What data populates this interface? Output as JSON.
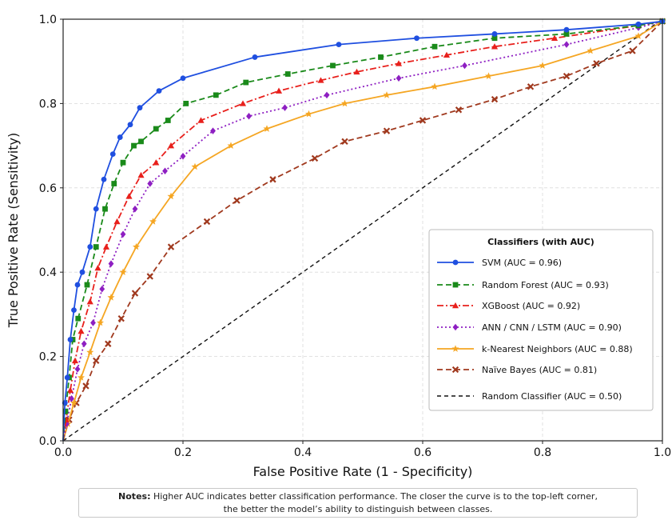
{
  "chart_data": {
    "type": "line",
    "title": "",
    "xlabel": "False Positive Rate (1 - Specificity)",
    "ylabel": "True Positive Rate (Sensitivity)",
    "xlim": [
      0,
      1
    ],
    "ylim": [
      0,
      1
    ],
    "x_ticks": [
      "0.0",
      "0.2",
      "0.4",
      "0.6",
      "0.8",
      "1.0"
    ],
    "y_ticks": [
      "0.0",
      "0.2",
      "0.4",
      "0.6",
      "0.8",
      "1.0"
    ],
    "grid": true,
    "legend_title": "Classifiers (with AUC)",
    "legend_position": "lower-right",
    "series": [
      {
        "name": "SVM (AUC = 0.96)",
        "color": "#1f4fe0",
        "line_style": "solid",
        "marker": "circle",
        "x": [
          0,
          0.003,
          0.007,
          0.012,
          0.018,
          0.024,
          0.032,
          0.045,
          0.055,
          0.068,
          0.083,
          0.095,
          0.112,
          0.128,
          0.16,
          0.2,
          0.32,
          0.46,
          0.59,
          0.72,
          0.84,
          0.96,
          1.0
        ],
        "y": [
          0,
          0.09,
          0.15,
          0.24,
          0.31,
          0.37,
          0.4,
          0.46,
          0.55,
          0.62,
          0.68,
          0.72,
          0.75,
          0.79,
          0.83,
          0.86,
          0.91,
          0.94,
          0.955,
          0.965,
          0.975,
          0.988,
          0.995
        ]
      },
      {
        "name": "Random Forest (AUC = 0.93)",
        "color": "#1a8a1a",
        "line_style": "dashed",
        "marker": "square",
        "x": [
          0,
          0.004,
          0.01,
          0.016,
          0.025,
          0.04,
          0.055,
          0.07,
          0.085,
          0.1,
          0.118,
          0.13,
          0.155,
          0.175,
          0.205,
          0.255,
          0.305,
          0.375,
          0.45,
          0.53,
          0.62,
          0.72,
          0.84,
          0.96,
          1.0
        ],
        "y": [
          0,
          0.07,
          0.15,
          0.24,
          0.29,
          0.37,
          0.46,
          0.55,
          0.61,
          0.66,
          0.7,
          0.71,
          0.74,
          0.76,
          0.8,
          0.82,
          0.85,
          0.87,
          0.89,
          0.91,
          0.935,
          0.955,
          0.965,
          0.985,
          0.995
        ]
      },
      {
        "name": "XGBoost (AUC = 0.92)",
        "color": "#e8201c",
        "line_style": "dashdot",
        "marker": "triangle",
        "x": [
          0,
          0.005,
          0.012,
          0.02,
          0.03,
          0.045,
          0.058,
          0.072,
          0.09,
          0.11,
          0.13,
          0.155,
          0.18,
          0.23,
          0.3,
          0.36,
          0.43,
          0.49,
          0.56,
          0.64,
          0.72,
          0.82,
          0.96,
          1.0
        ],
        "y": [
          0,
          0.05,
          0.12,
          0.19,
          0.26,
          0.33,
          0.41,
          0.46,
          0.52,
          0.58,
          0.63,
          0.66,
          0.7,
          0.76,
          0.8,
          0.83,
          0.855,
          0.875,
          0.895,
          0.915,
          0.935,
          0.955,
          0.985,
          0.995
        ]
      },
      {
        "name": "ANN / CNN / LSTM (AUC = 0.90)",
        "color": "#8e1fc2",
        "line_style": "dotted",
        "marker": "diamond",
        "x": [
          0,
          0.006,
          0.014,
          0.024,
          0.035,
          0.05,
          0.065,
          0.08,
          0.1,
          0.12,
          0.145,
          0.17,
          0.2,
          0.25,
          0.31,
          0.37,
          0.44,
          0.56,
          0.67,
          0.84,
          0.96,
          1.0
        ],
        "y": [
          0,
          0.04,
          0.1,
          0.17,
          0.23,
          0.28,
          0.36,
          0.42,
          0.49,
          0.55,
          0.61,
          0.64,
          0.675,
          0.735,
          0.77,
          0.79,
          0.82,
          0.86,
          0.89,
          0.94,
          0.98,
          0.995
        ]
      },
      {
        "name": "k-Nearest Neighbors (AUC = 0.88)",
        "color": "#f5a623",
        "line_style": "solid",
        "marker": "star",
        "x": [
          0,
          0.008,
          0.018,
          0.03,
          0.045,
          0.062,
          0.08,
          0.1,
          0.122,
          0.15,
          0.18,
          0.22,
          0.28,
          0.34,
          0.41,
          0.47,
          0.54,
          0.62,
          0.71,
          0.8,
          0.88,
          0.96,
          1.0
        ],
        "y": [
          0,
          0.04,
          0.09,
          0.15,
          0.21,
          0.28,
          0.34,
          0.4,
          0.46,
          0.52,
          0.58,
          0.65,
          0.7,
          0.74,
          0.775,
          0.8,
          0.82,
          0.84,
          0.865,
          0.89,
          0.925,
          0.96,
          0.995
        ]
      },
      {
        "name": "Naïve Bayes (AUC = 0.81)",
        "color": "#a0391e",
        "line_style": "dashed",
        "marker": "x",
        "x": [
          0,
          0.01,
          0.022,
          0.038,
          0.055,
          0.075,
          0.097,
          0.12,
          0.145,
          0.18,
          0.24,
          0.29,
          0.35,
          0.42,
          0.47,
          0.54,
          0.6,
          0.66,
          0.72,
          0.78,
          0.84,
          0.89,
          0.95,
          1.0
        ],
        "y": [
          0,
          0.05,
          0.09,
          0.13,
          0.19,
          0.23,
          0.29,
          0.35,
          0.39,
          0.46,
          0.52,
          0.57,
          0.62,
          0.67,
          0.71,
          0.735,
          0.76,
          0.785,
          0.81,
          0.84,
          0.865,
          0.895,
          0.925,
          0.995
        ]
      },
      {
        "name": "Random Classifier (AUC = 0.50)",
        "color": "#111111",
        "line_style": "dashed",
        "marker": "none",
        "x": [
          0,
          1
        ],
        "y": [
          0,
          1
        ]
      }
    ]
  },
  "notes": {
    "label": "Notes:",
    "line1": "Higher AUC indicates better classification performance. The closer the curve is to the top-left corner,",
    "line2": "the better the model’s ability to distinguish between classes."
  }
}
